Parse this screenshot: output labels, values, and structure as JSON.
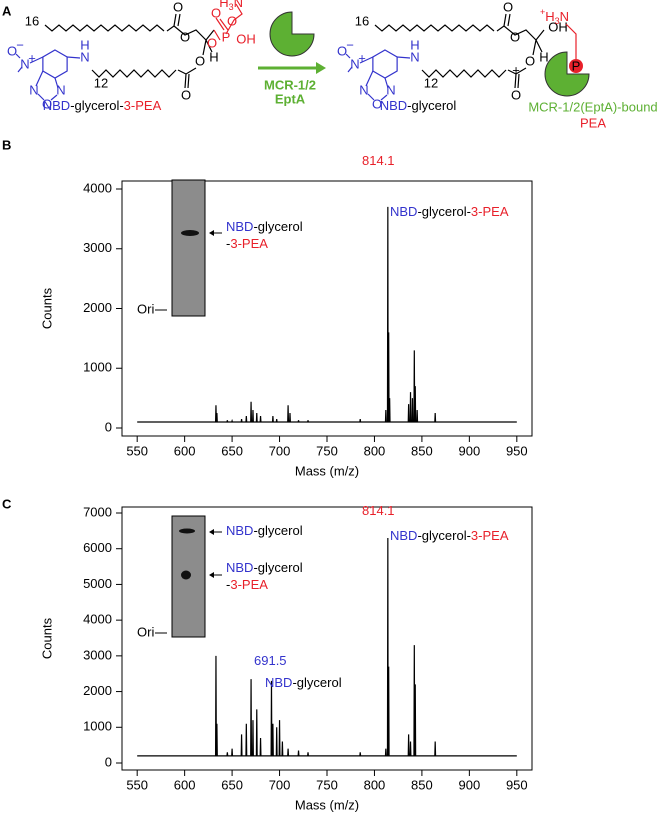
{
  "panel_labels": [
    "A",
    "B",
    "C"
  ],
  "scheme": {
    "left": {
      "chain_top": "16",
      "chain_bottom": "12",
      "nbd_atoms": [
        "O",
        "N",
        "N",
        "O",
        "N",
        "N",
        "H"
      ],
      "charges": [
        "−",
        "+"
      ],
      "ester_o": [
        "O",
        "O",
        "O",
        "O"
      ],
      "stereo_h": "H",
      "phosphate": {
        "amine": [
          "+",
          "H",
          "3",
          "N"
        ],
        "atoms": [
          "O",
          "P",
          "O",
          "OH",
          "O"
        ]
      },
      "name": [
        "NBD",
        "-glycerol-",
        "3-PEA"
      ]
    },
    "enzyme": [
      "MCR-1/2",
      "EptA"
    ],
    "right": {
      "chain_top": "16",
      "chain_bottom": "12",
      "nbd_atoms": [
        "O",
        "N",
        "N",
        "O",
        "N",
        "N",
        "H"
      ],
      "charges": [
        "−",
        "+"
      ],
      "ester_o": [
        "O",
        "O",
        "O",
        "O"
      ],
      "stereo_h": "H",
      "oh": "OH",
      "name": [
        "NBD",
        "-glycerol"
      ]
    },
    "plus": "+",
    "product": {
      "amine": [
        "+",
        "H",
        "3",
        "N"
      ],
      "p": "P",
      "name": [
        "MCR-1/2(EptA)-bound",
        "PEA"
      ]
    }
  },
  "chart_data": [
    {
      "type": "line",
      "color": "#000000",
      "x_label": "Mass (m/z)",
      "y_label": "Counts",
      "xlim": [
        534,
        966
      ],
      "xticks": [
        550,
        600,
        650,
        700,
        750,
        800,
        850,
        900,
        950
      ],
      "ylim": [
        -134,
        4134
      ],
      "yticks": [
        0,
        1000,
        2000,
        3000,
        4000
      ],
      "x": [
        550,
        632.6,
        633,
        633.4,
        633.6,
        634,
        634.4,
        644.6,
        645,
        645.4,
        649.6,
        650,
        650.4,
        659.6,
        660,
        660.4,
        664.6,
        665,
        665.4,
        669.6,
        670,
        670.4,
        671.6,
        672,
        672.4,
        675.6,
        676,
        676.4,
        679.6,
        680,
        680.4,
        692.6,
        693,
        693.4,
        696.6,
        697,
        697.4,
        708.6,
        709,
        709.4,
        710.6,
        711,
        711.4,
        719.6,
        720,
        720.4,
        729.6,
        730,
        730.4,
        784.6,
        785,
        785.4,
        811.6,
        812,
        812.4,
        813.7,
        814.1,
        814.4,
        814.6,
        815,
        815.4,
        815.6,
        816,
        816.4,
        835.6,
        836,
        836.4,
        837.6,
        838,
        838.4,
        839.6,
        840,
        840.4,
        841.6,
        842,
        842.4,
        842.6,
        843,
        843.4,
        844.6,
        845,
        845.4,
        863.6,
        864,
        864.4,
        950
      ],
      "values": [
        100,
        100,
        380,
        100,
        100,
        250,
        100,
        100,
        130,
        100,
        100,
        120,
        100,
        100,
        150,
        100,
        100,
        200,
        100,
        100,
        440,
        100,
        100,
        300,
        100,
        100,
        250,
        100,
        100,
        200,
        100,
        100,
        200,
        100,
        100,
        150,
        100,
        100,
        380,
        100,
        100,
        250,
        100,
        100,
        130,
        100,
        100,
        130,
        100,
        100,
        150,
        100,
        100,
        300,
        100,
        100,
        3700,
        100,
        100,
        1600,
        100,
        100,
        500,
        100,
        100,
        400,
        100,
        100,
        600,
        100,
        100,
        500,
        100,
        100,
        1300,
        100,
        100,
        700,
        100,
        100,
        300,
        100,
        100,
        250,
        100,
        100
      ],
      "annotations": [
        {
          "parts": [
            {
              "text": "814.1",
              "color": "#e8202a"
            }
          ]
        },
        {
          "parts": [
            {
              "text": "NBD",
              "color": "#3333cc"
            },
            {
              "text": "-glycerol-",
              "color": "#000000"
            },
            {
              "text": "3-PEA",
              "color": "#e8202a"
            }
          ]
        }
      ],
      "inset": {
        "ori": "Ori",
        "labels": [
          {
            "parts": [
              {
                "text": "NBD",
                "color": "#3333cc"
              },
              {
                "text": "-glycerol",
                "color": "#000000"
              }
            ]
          },
          {
            "parts": [
              {
                "text": "-",
                "color": "#000000"
              },
              {
                "text": "3-PEA",
                "color": "#e8202a"
              }
            ]
          }
        ]
      }
    },
    {
      "type": "line",
      "color": "#000000",
      "x_label": "Mass (m/z)",
      "y_label": "Counts",
      "xlim": [
        534,
        966
      ],
      "xticks": [
        550,
        600,
        650,
        700,
        750,
        800,
        850,
        900,
        950
      ],
      "ylim": [
        -196,
        7168
      ],
      "yticks": [
        0,
        1000,
        2000,
        3000,
        4000,
        5000,
        6000,
        7000
      ],
      "x": [
        550,
        632.6,
        633,
        633.4,
        633.6,
        634,
        634.4,
        644.6,
        645,
        645.4,
        649.6,
        650,
        650.4,
        659.6,
        660,
        660.4,
        664.6,
        665,
        665.4,
        669.6,
        670,
        670.4,
        671.6,
        672,
        672.4,
        675.6,
        676,
        676.4,
        679.6,
        680,
        680.4,
        691.1,
        691.5,
        691.9,
        692.6,
        693,
        693.4,
        696.6,
        697,
        697.4,
        699.6,
        700,
        700.4,
        702.6,
        703,
        703.4,
        708.6,
        709,
        709.4,
        719.6,
        720,
        720.4,
        729.6,
        730,
        730.4,
        784.6,
        785,
        785.4,
        811.6,
        812,
        812.4,
        813.7,
        814.1,
        814.4,
        814.6,
        815,
        815.4,
        835.6,
        836,
        836.4,
        837.6,
        838,
        838.4,
        841.6,
        842,
        842.4,
        842.6,
        843,
        843.4,
        863.6,
        864,
        864.4,
        950
      ],
      "values": [
        200,
        200,
        3000,
        200,
        200,
        1100,
        200,
        200,
        300,
        200,
        200,
        400,
        200,
        200,
        800,
        200,
        200,
        1100,
        200,
        200,
        2350,
        200,
        200,
        1200,
        200,
        200,
        1500,
        200,
        200,
        700,
        200,
        200,
        2300,
        200,
        200,
        1100,
        200,
        200,
        1000,
        200,
        200,
        1200,
        200,
        200,
        600,
        200,
        200,
        400,
        200,
        200,
        350,
        200,
        200,
        300,
        200,
        200,
        300,
        200,
        200,
        400,
        200,
        200,
        6300,
        200,
        200,
        2700,
        200,
        200,
        800,
        200,
        200,
        600,
        200,
        200,
        3300,
        200,
        200,
        2200,
        200,
        200,
        600,
        200,
        200
      ],
      "annotations": [
        {
          "parts": [
            {
              "text": "814.1",
              "color": "#e8202a"
            }
          ]
        },
        {
          "parts": [
            {
              "text": "NBD",
              "color": "#3333cc"
            },
            {
              "text": "-glycerol-",
              "color": "#000000"
            },
            {
              "text": "3-PEA",
              "color": "#e8202a"
            }
          ]
        },
        {
          "parts": [
            {
              "text": "691.5",
              "color": "#3333cc"
            }
          ]
        },
        {
          "parts": [
            {
              "text": "NBD",
              "color": "#3333cc"
            },
            {
              "text": "-glycerol",
              "color": "#000000"
            }
          ]
        }
      ],
      "inset": {
        "ori": "Ori",
        "labels": [
          {
            "parts": [
              {
                "text": "NBD",
                "color": "#3333cc"
              },
              {
                "text": "-glycerol",
                "color": "#000000"
              }
            ]
          },
          {
            "parts": [
              {
                "text": "NBD",
                "color": "#3333cc"
              },
              {
                "text": "-glycerol",
                "color": "#000000"
              }
            ]
          },
          {
            "parts": [
              {
                "text": "-",
                "color": "#000000"
              },
              {
                "text": "3-PEA",
                "color": "#e8202a"
              }
            ]
          }
        ]
      }
    }
  ]
}
